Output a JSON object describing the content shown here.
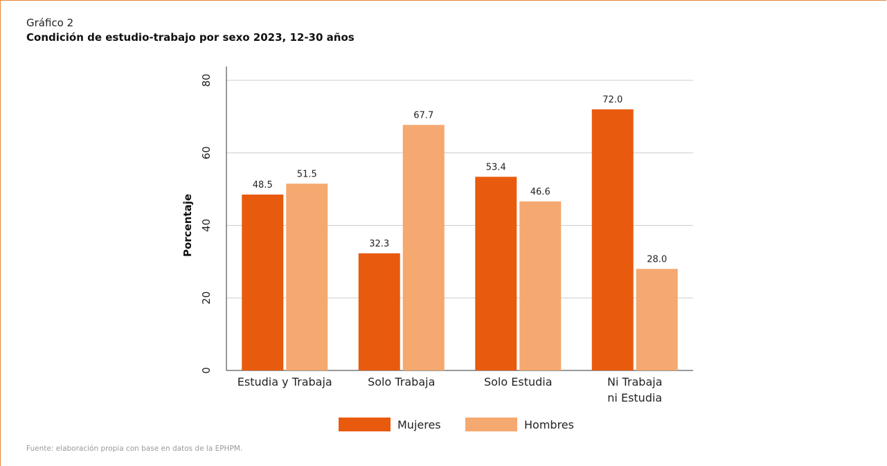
{
  "figure": {
    "label": "Gráfico 2",
    "source": "Fuente: elaboración propia con base en datos de la EPHPM."
  },
  "colors": {
    "Mujeres": "#e85b0e",
    "Hombres": "#f5a86f",
    "grid": "#cccccc",
    "frame": "#e8843c"
  },
  "chart_data": {
    "type": "bar",
    "title": "Condición de estudio-trabajo por sexo 2023, 12-30 años",
    "xlabel": "",
    "ylabel": "Porcentaje",
    "ylim": [
      0,
      80
    ],
    "yticks": [
      0,
      20,
      40,
      60,
      80
    ],
    "grid": true,
    "legend_position": "bottom",
    "categories": [
      "Estudia y Trabaja",
      "Solo Trabaja",
      "Solo Estudia",
      "Ni Trabaja ni Estudia"
    ],
    "category_lines": [
      [
        "Estudia y Trabaja"
      ],
      [
        "Solo Trabaja"
      ],
      [
        "Solo Estudia"
      ],
      [
        "Ni Trabaja",
        "ni Estudia"
      ]
    ],
    "series": [
      {
        "name": "Mujeres",
        "values": [
          48.5,
          32.3,
          53.4,
          72.0
        ]
      },
      {
        "name": "Hombres",
        "values": [
          51.5,
          67.7,
          46.6,
          28.0
        ]
      }
    ]
  }
}
